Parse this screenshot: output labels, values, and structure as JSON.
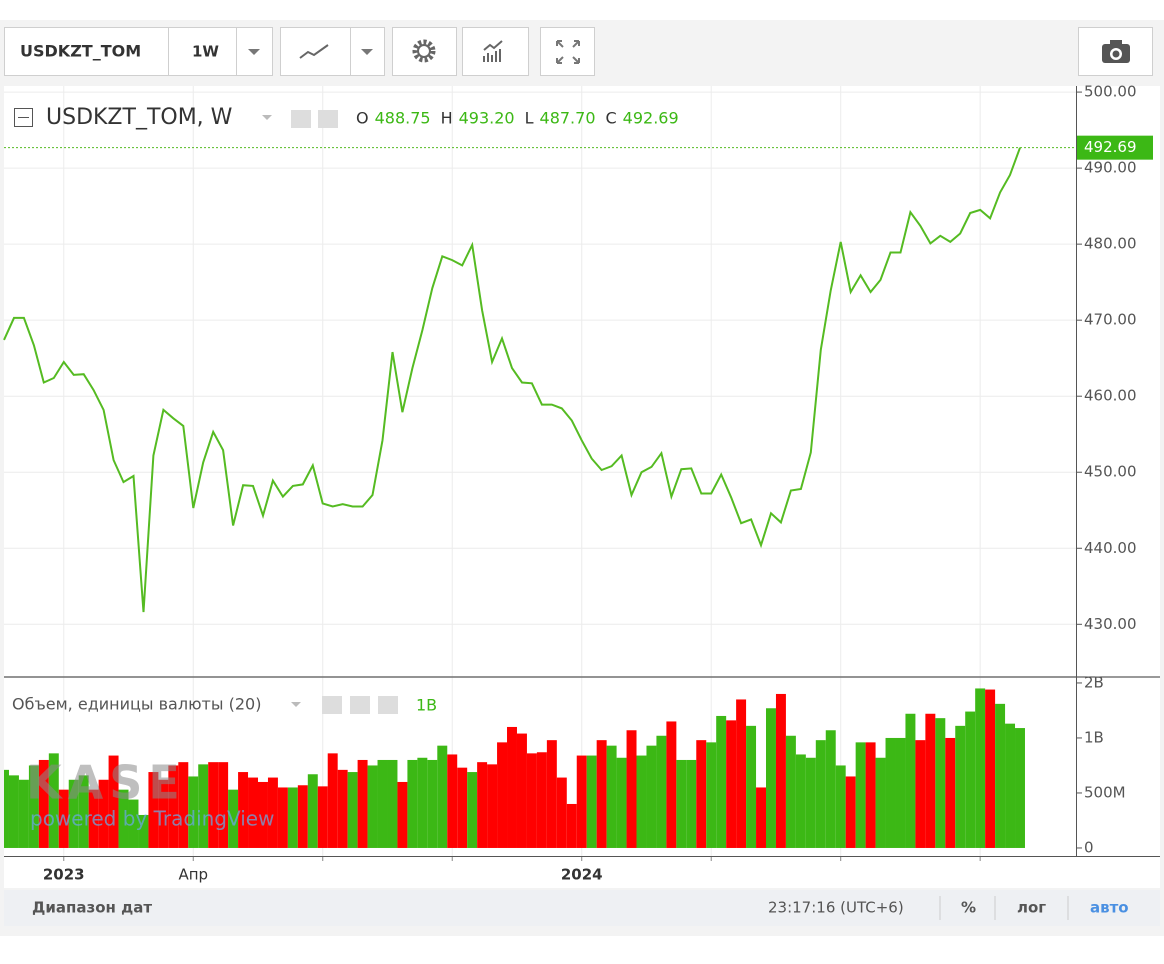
{
  "toolbar": {
    "symbol": "USDKZT_TOM",
    "interval": "1W"
  },
  "chart_data": [
    {
      "type": "line",
      "title": "USDKZT_TOM, W",
      "color": "#55bb22",
      "ohlc": [
        {
          "label": "O",
          "value": "488.75"
        },
        {
          "label": "H",
          "value": "493.20"
        },
        {
          "label": "L",
          "value": "487.70"
        },
        {
          "label": "C",
          "value": "492.69"
        }
      ],
      "categories": [
        null,
        null,
        null,
        null,
        null,
        null,
        "2023",
        null,
        null,
        null,
        null,
        null,
        null,
        null,
        null,
        null,
        null,
        null,
        null,
        "Апр",
        null,
        null,
        null,
        null,
        null,
        null,
        null,
        null,
        null,
        null,
        null,
        null,
        null,
        null,
        null,
        null,
        null,
        null,
        null,
        null,
        null,
        null,
        null,
        null,
        null,
        null,
        null,
        null,
        null,
        null,
        null,
        null,
        null,
        null,
        null,
        null,
        null,
        null,
        "2024",
        null,
        null,
        null,
        null,
        null,
        null,
        null,
        null,
        null,
        null,
        null,
        null,
        null,
        null,
        null,
        null,
        null,
        null,
        null,
        null,
        null,
        null,
        null,
        null,
        null,
        null,
        null,
        null,
        null,
        null,
        null,
        null,
        null,
        null,
        null,
        null,
        null,
        null,
        null,
        null,
        null,
        null,
        null,
        null
      ],
      "xticks": [
        6,
        19,
        32,
        45,
        58,
        71,
        84,
        98
      ],
      "values": [
        467.4,
        470.3,
        470.3,
        466.7,
        461.8,
        462.4,
        464.5,
        462.8,
        462.9,
        460.8,
        458.2,
        451.6,
        448.7,
        449.5,
        431.6,
        452.2,
        458.2,
        457.1,
        456.1,
        445.3,
        451.3,
        455.3,
        452.9,
        443.0,
        448.3,
        448.2,
        444.3,
        448.9,
        446.8,
        448.2,
        448.4,
        450.9,
        445.9,
        445.5,
        445.8,
        445.5,
        445.5,
        447.0,
        454.2,
        465.8,
        457.9,
        463.7,
        468.7,
        474.2,
        478.4,
        477.9,
        477.2,
        479.9,
        471.3,
        464.5,
        467.6,
        463.7,
        461.8,
        461.7,
        458.9,
        458.9,
        458.4,
        456.8,
        454.2,
        451.8,
        450.3,
        450.8,
        452.2,
        447.0,
        450.0,
        450.7,
        452.5,
        446.8,
        450.4,
        450.5,
        447.2,
        447.2,
        449.7,
        446.7,
        443.3,
        443.8,
        440.4,
        444.6,
        443.4,
        447.6,
        447.8,
        452.6,
        466.1,
        473.9,
        480.3,
        473.7,
        475.9,
        473.7,
        475.3,
        478.9,
        478.9,
        484.2,
        482.4,
        480.1,
        481.1,
        480.3,
        481.4,
        484.1,
        484.5,
        483.4,
        486.8,
        489.1,
        492.69
      ],
      "ylim": [
        423.2,
        500.8
      ],
      "yticks": [
        {
          "value": 430,
          "label": "430.00"
        },
        {
          "value": 440,
          "label": "440.00"
        },
        {
          "value": 450,
          "label": "450.00"
        },
        {
          "value": 460,
          "label": "460.00"
        },
        {
          "value": 470,
          "label": "470.00"
        },
        {
          "value": 480,
          "label": "480.00"
        },
        {
          "value": 490,
          "label": "490.00"
        },
        {
          "value": 500,
          "label": "500.00"
        }
      ],
      "grid": true
    },
    {
      "type": "bar",
      "title": "Объем, единицы валюты (20)",
      "last_value_label": "1B",
      "values": [
        710,
        660,
        620,
        750,
        800,
        860,
        530,
        620,
        660,
        530,
        620,
        840,
        530,
        440,
        300,
        690,
        620,
        750,
        780,
        650,
        760,
        780,
        780,
        530,
        690,
        640,
        600,
        640,
        550,
        550,
        570,
        670,
        560,
        860,
        710,
        690,
        800,
        750,
        800,
        800,
        600,
        800,
        820,
        800,
        930,
        850,
        730,
        690,
        780,
        760,
        960,
        1100,
        1040,
        860,
        870,
        980,
        640,
        400,
        840,
        840,
        980,
        930,
        820,
        1070,
        840,
        930,
        1020,
        1150,
        800,
        800,
        980,
        960,
        1200,
        1160,
        1350,
        1110,
        550,
        1270,
        1400,
        1020,
        850,
        820,
        980,
        1070,
        750,
        650,
        960,
        960,
        820,
        1000,
        1000,
        1220,
        980,
        1220,
        1180,
        1000,
        1110,
        1240,
        1450,
        1440,
        1310,
        1130,
        1090
      ],
      "colors": [
        "#3cb815",
        "#3cb815",
        "#3cb815",
        "#3cb815",
        "#ff0000",
        "#3cb815",
        "#ff0000",
        "#3cb815",
        "#3cb815",
        "#ff0000",
        "#ff0000",
        "#ff0000",
        "#3cb815",
        "#3cb815",
        "#3cb815",
        "#ff0000",
        "#ff0000",
        "#ff0000",
        "#ff0000",
        "#3cb815",
        "#3cb815",
        "#ff0000",
        "#ff0000",
        "#3cb815",
        "#ff0000",
        "#ff0000",
        "#ff0000",
        "#ff0000",
        "#ff0000",
        "#3cb815",
        "#ff0000",
        "#3cb815",
        "#ff0000",
        "#ff0000",
        "#ff0000",
        "#3cb815",
        "#ff0000",
        "#3cb815",
        "#3cb815",
        "#3cb815",
        "#ff0000",
        "#3cb815",
        "#3cb815",
        "#3cb815",
        "#3cb815",
        "#ff0000",
        "#ff0000",
        "#3cb815",
        "#ff0000",
        "#ff0000",
        "#ff0000",
        "#ff0000",
        "#ff0000",
        "#ff0000",
        "#ff0000",
        "#ff0000",
        "#ff0000",
        "#ff0000",
        "#ff0000",
        "#3cb815",
        "#ff0000",
        "#3cb815",
        "#3cb815",
        "#ff0000",
        "#3cb815",
        "#3cb815",
        "#3cb815",
        "#ff0000",
        "#3cb815",
        "#3cb815",
        "#ff0000",
        "#3cb815",
        "#3cb815",
        "#ff0000",
        "#ff0000",
        "#3cb815",
        "#ff0000",
        "#3cb815",
        "#ff0000",
        "#3cb815",
        "#3cb815",
        "#3cb815",
        "#3cb815",
        "#3cb815",
        "#3cb815",
        "#ff0000",
        "#3cb815",
        "#ff0000",
        "#3cb815",
        "#3cb815",
        "#3cb815",
        "#3cb815",
        "#ff0000",
        "#ff0000",
        "#3cb815",
        "#ff0000",
        "#3cb815",
        "#3cb815",
        "#3cb815",
        "#ff0000",
        "#3cb815",
        "#3cb815",
        "#3cb815"
      ],
      "ylim": [
        -73,
        1545
      ],
      "yticks": [
        0,
        {
          "value": 500,
          "label": "500M"
        },
        {
          "value": 1000,
          "label": "1B"
        },
        {
          "value": 1500,
          "label": "2B"
        }
      ]
    }
  ],
  "watermark": {
    "logo": "KASE",
    "text": "powered by TradingView"
  },
  "status_bar": {
    "range": "Диапазон дат",
    "time": "23:17:16 (UTC+6)",
    "percent": "%",
    "log": "лог",
    "auto": "авто"
  }
}
